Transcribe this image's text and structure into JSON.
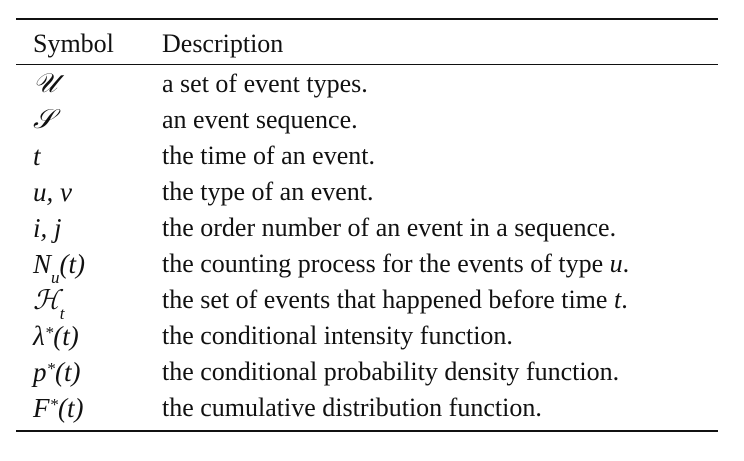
{
  "table": {
    "headers": {
      "symbol": "Symbol",
      "description": "Description"
    },
    "rows": [
      {
        "symbol": "𝒰",
        "description": "a set of event types."
      },
      {
        "symbol": "𝒮",
        "description": "an event sequence."
      },
      {
        "symbol": "t",
        "description": "the time of an event."
      },
      {
        "symbol": "u, v",
        "description": "the type of an event."
      },
      {
        "symbol": "i, j",
        "description": "the order number of an event in a sequence."
      },
      {
        "symbol_base": "N",
        "symbol_sub": "u",
        "symbol_tail": "(t)",
        "description": "the counting process for the events of type",
        "description_math": "u",
        "description_end": "."
      },
      {
        "symbol_base": "ℋ",
        "symbol_sub": "t",
        "description": "the set of events that happened before time",
        "description_math": "t",
        "description_end": "."
      },
      {
        "symbol_base": "λ",
        "symbol_sup": "*",
        "symbol_tail": "(t)",
        "description": "the conditional intensity function."
      },
      {
        "symbol_base": "p",
        "symbol_sup": "*",
        "symbol_tail": "(t)",
        "description": "the conditional probability density function."
      },
      {
        "symbol_base": "F",
        "symbol_sup": "*",
        "symbol_tail": "(t)",
        "description": "the cumulative distribution function."
      }
    ]
  }
}
